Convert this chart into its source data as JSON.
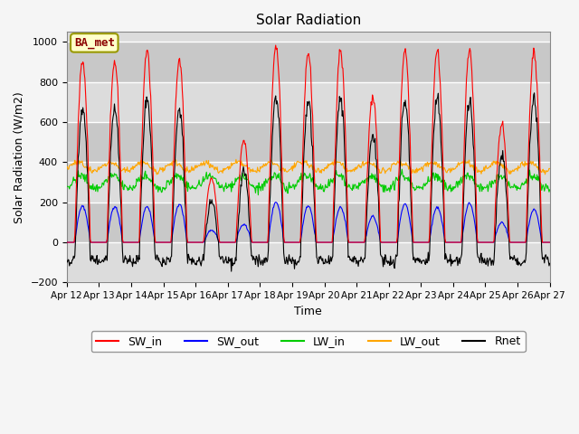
{
  "title": "Solar Radiation",
  "ylabel": "Solar Radiation (W/m2)",
  "xlabel": "Time",
  "ylim": [
    -200,
    1050
  ],
  "yticks": [
    -200,
    0,
    200,
    400,
    600,
    800,
    1000
  ],
  "start_day": 12,
  "num_days": 15,
  "colors": {
    "SW_in": "#FF0000",
    "SW_out": "#0000FF",
    "LW_in": "#00CC00",
    "LW_out": "#FFA500",
    "Rnet": "#000000"
  },
  "legend_labels": [
    "SW_in",
    "SW_out",
    "LW_in",
    "LW_out",
    "Rnet"
  ],
  "annotation_text": "BA_met",
  "background_color": "#DCDCDC",
  "band_colors": [
    "#DCDCDC",
    "#C8C8C8"
  ],
  "grid_color": "#FFFFFF",
  "fig_bg": "#F5F5F5"
}
